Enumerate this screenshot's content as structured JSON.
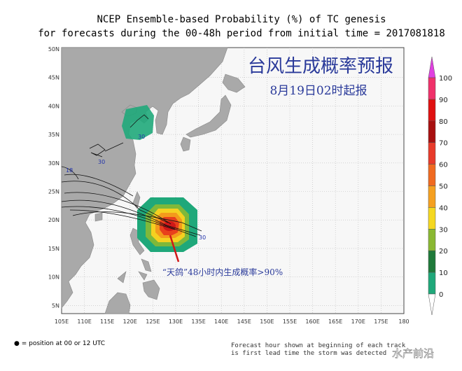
{
  "header": {
    "title_line1": "NCEP Ensemble-based Probability (%) of TC genesis",
    "title_line2": "for forecasts during the 00-48h period from initial time = 2017081818"
  },
  "overlay": {
    "title": "台风生成概率预报",
    "issued": "8月19日02时起报",
    "annotation": "“天鸽”48小时内生成概率>90%"
  },
  "map": {
    "lat_labels": [
      "50N",
      "45N",
      "40N",
      "35N",
      "30N",
      "25N",
      "20N",
      "15N",
      "10N",
      "5N"
    ],
    "lon_labels": [
      "105E",
      "110E",
      "115E",
      "120E",
      "125E",
      "130E",
      "135E",
      "140E",
      "145E",
      "150E",
      "155E",
      "160E",
      "165E",
      "170E",
      "175E",
      "180"
    ],
    "track_labels": [
      "30",
      "30",
      "18",
      "30"
    ]
  },
  "colorbar": {
    "labels": [
      "100",
      "90",
      "80",
      "70",
      "60",
      "50",
      "40",
      "30",
      "20",
      "10",
      "0"
    ]
  },
  "footer": {
    "legend": "● = position at 00 or 12 UTC",
    "note_line1": "Forecast hour shown at beginning of each track",
    "note_line2": "is first lead time the storm was detected"
  },
  "watermark": "水产前沿"
}
